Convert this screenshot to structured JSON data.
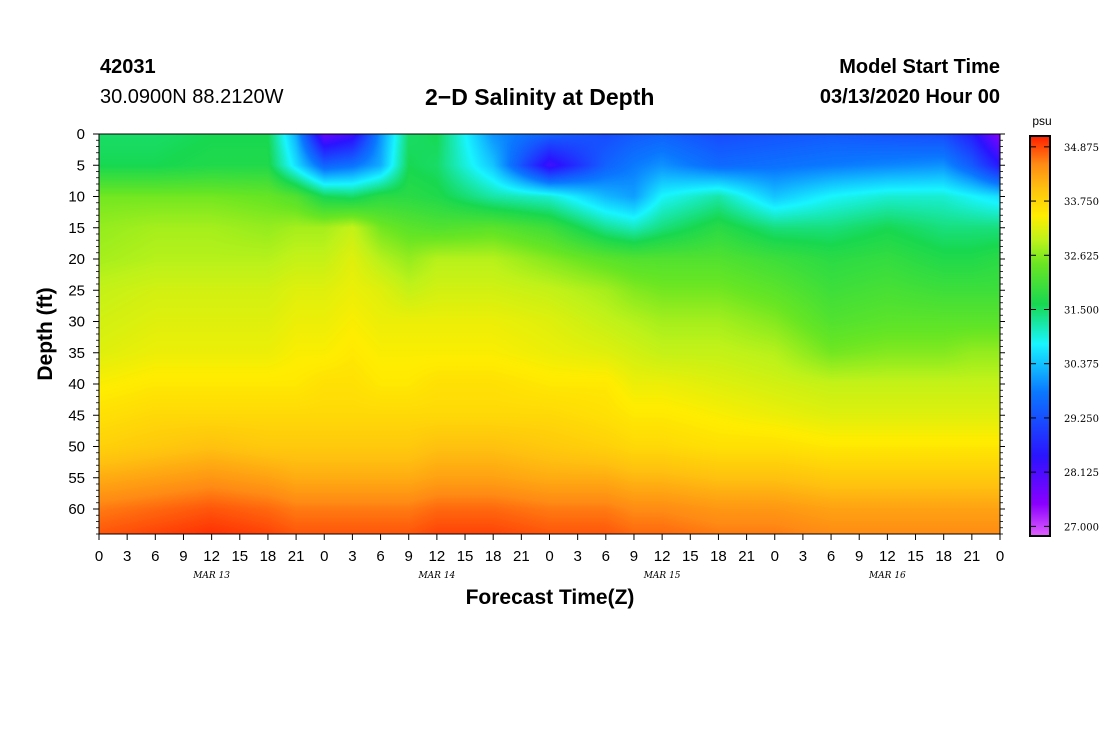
{
  "header": {
    "station_id": "42031",
    "location": "30.0900N 88.2120W",
    "title": "2−D Salinity at Depth",
    "model_start_label": "Model Start Time",
    "model_start_value": "03/13/2020 Hour 00"
  },
  "chart_data": {
    "type": "heatmap",
    "title": "2-D Salinity at Depth",
    "xlabel": "Forecast Time(Z)",
    "ylabel": "Depth (ft)",
    "x_hours": [
      0,
      96
    ],
    "ylim": [
      0,
      64
    ],
    "y_ticks": [
      0,
      5,
      10,
      15,
      20,
      25,
      30,
      35,
      40,
      45,
      50,
      55,
      60
    ],
    "x_tick_labels": [
      "0",
      "3",
      "6",
      "9",
      "12",
      "15",
      "18",
      "21",
      "0",
      "3",
      "6",
      "9",
      "12",
      "15",
      "18",
      "21",
      "0",
      "3",
      "6",
      "9",
      "12",
      "15",
      "18",
      "21",
      "0",
      "3",
      "6",
      "9",
      "12",
      "15",
      "18",
      "21",
      "0"
    ],
    "day_labels": [
      "MAR 13",
      "MAR 14",
      "MAR 15",
      "MAR 16"
    ],
    "colorbar": {
      "unit": "psu",
      "min": 26.8,
      "max": 35.1,
      "ticks": [
        "34.875",
        "33.750",
        "32.625",
        "31.500",
        "30.375",
        "29.250",
        "28.125",
        "27.000"
      ]
    },
    "grid_times": [
      0,
      6,
      12,
      18,
      21,
      24,
      27,
      30,
      33,
      36,
      42,
      48,
      54,
      57,
      60,
      66,
      72,
      78,
      84,
      90,
      93,
      96
    ],
    "grid_depths": [
      0,
      5,
      10,
      15,
      20,
      25,
      30,
      35,
      40,
      45,
      50,
      55,
      60,
      64
    ],
    "grid_values": [
      [
        31.5,
        31.6,
        32.5,
        32.7,
        32.8,
        33.0,
        33.1,
        33.2,
        33.4,
        33.6,
        33.8,
        34.2,
        34.6,
        34.8
      ],
      [
        31.5,
        31.6,
        32.5,
        32.8,
        32.9,
        33.1,
        33.2,
        33.3,
        33.5,
        33.7,
        33.9,
        34.3,
        34.7,
        34.9
      ],
      [
        31.6,
        31.7,
        32.5,
        32.8,
        32.9,
        33.1,
        33.2,
        33.3,
        33.5,
        33.7,
        34.0,
        34.4,
        34.8,
        35.0
      ],
      [
        31.6,
        31.7,
        32.4,
        32.7,
        32.9,
        33.1,
        33.2,
        33.3,
        33.5,
        33.7,
        33.9,
        34.3,
        34.7,
        34.9
      ],
      [
        30.2,
        30.6,
        32.2,
        32.8,
        33.0,
        33.2,
        33.3,
        33.4,
        33.5,
        33.7,
        33.9,
        34.2,
        34.6,
        34.8
      ],
      [
        27.8,
        29.5,
        31.6,
        32.8,
        33.0,
        33.2,
        33.3,
        33.4,
        33.6,
        33.7,
        33.9,
        34.2,
        34.6,
        34.8
      ],
      [
        28.2,
        29.7,
        31.5,
        33.0,
        33.2,
        33.3,
        33.4,
        33.5,
        33.6,
        33.7,
        33.9,
        34.2,
        34.6,
        34.8
      ],
      [
        30.0,
        30.2,
        31.8,
        32.5,
        32.9,
        33.2,
        33.3,
        33.4,
        33.5,
        33.7,
        33.9,
        34.2,
        34.6,
        34.8
      ],
      [
        31.5,
        31.6,
        31.8,
        32.3,
        32.7,
        33.0,
        33.3,
        33.4,
        33.5,
        33.7,
        33.9,
        34.2,
        34.6,
        34.8
      ],
      [
        31.6,
        31.5,
        31.7,
        32.2,
        32.9,
        33.1,
        33.3,
        33.4,
        33.6,
        33.7,
        34.0,
        34.3,
        34.7,
        34.9
      ],
      [
        30.0,
        30.4,
        31.2,
        32.3,
        32.9,
        33.1,
        33.3,
        33.4,
        33.6,
        33.7,
        34.0,
        34.3,
        34.7,
        34.9
      ],
      [
        29.5,
        28.2,
        31.0,
        32.0,
        32.6,
        33.0,
        33.2,
        33.3,
        33.5,
        33.7,
        33.9,
        34.2,
        34.6,
        34.8
      ],
      [
        29.2,
        29.5,
        30.3,
        31.3,
        32.3,
        32.8,
        33.0,
        33.2,
        33.5,
        33.6,
        33.8,
        34.2,
        34.6,
        34.8
      ],
      [
        29.4,
        29.8,
        30.1,
        31.1,
        32.2,
        32.6,
        32.9,
        33.1,
        33.3,
        33.5,
        33.7,
        34.1,
        34.5,
        34.7
      ],
      [
        29.5,
        30.0,
        30.8,
        31.4,
        32.2,
        32.5,
        32.8,
        33.0,
        33.3,
        33.5,
        33.7,
        34.1,
        34.5,
        34.7
      ],
      [
        29.2,
        29.6,
        31.2,
        31.8,
        32.2,
        32.5,
        32.8,
        33.0,
        33.2,
        33.4,
        33.6,
        34.0,
        34.4,
        34.6
      ],
      [
        29.3,
        29.7,
        30.4,
        31.4,
        32.0,
        32.3,
        32.6,
        32.9,
        33.1,
        33.3,
        33.6,
        34.0,
        34.4,
        34.6
      ],
      [
        29.4,
        29.8,
        30.8,
        31.4,
        31.8,
        32.0,
        32.2,
        32.5,
        33.0,
        33.2,
        33.5,
        33.9,
        34.3,
        34.5
      ],
      [
        29.3,
        29.9,
        31.0,
        31.6,
        31.9,
        32.1,
        32.3,
        32.6,
        33.0,
        33.2,
        33.5,
        33.9,
        34.3,
        34.5
      ],
      [
        29.2,
        30.0,
        31.0,
        31.4,
        31.7,
        32.0,
        32.3,
        32.6,
        33.0,
        33.2,
        33.5,
        33.9,
        34.3,
        34.5
      ],
      [
        28.6,
        29.4,
        30.8,
        31.4,
        31.7,
        32.0,
        32.3,
        32.7,
        33.0,
        33.2,
        33.5,
        33.9,
        34.3,
        34.5
      ],
      [
        27.5,
        28.5,
        30.6,
        31.4,
        31.8,
        32.0,
        32.3,
        32.7,
        33.0,
        33.2,
        33.5,
        33.9,
        34.3,
        34.5
      ]
    ]
  }
}
